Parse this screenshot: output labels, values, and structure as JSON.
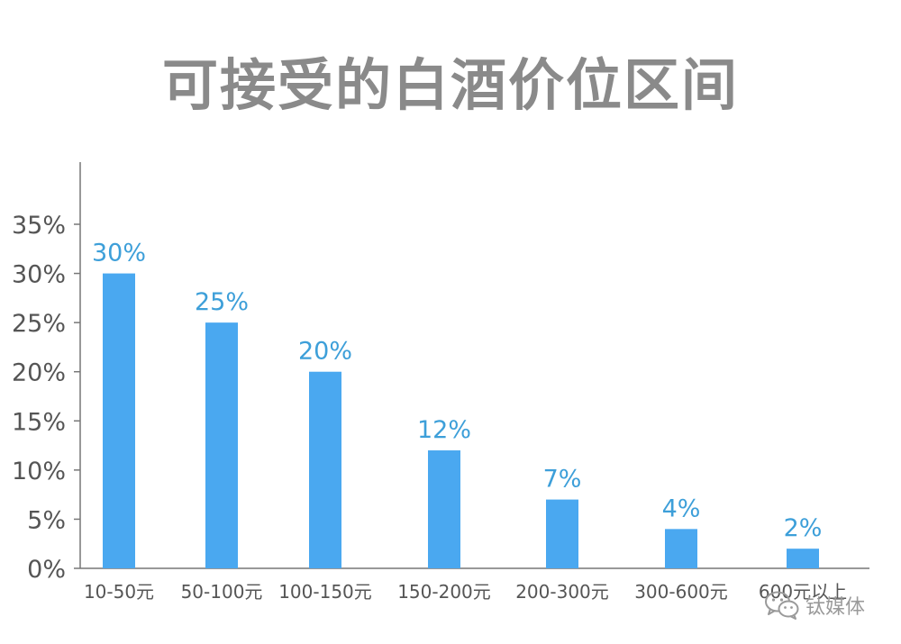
{
  "chart_data": {
    "type": "bar",
    "title": "可接受的白酒价位区间",
    "categories": [
      "10-50元",
      "50-100元",
      "100-150元",
      "150-200元",
      "200-300元",
      "300-600元",
      "600元以上"
    ],
    "values": [
      30,
      25,
      20,
      12,
      7,
      4,
      2
    ],
    "value_labels": [
      "30%",
      "25%",
      "20%",
      "12%",
      "7%",
      "4%",
      "2%"
    ],
    "ylim": [
      0,
      35
    ],
    "y_ticks": [
      "0%",
      "5%",
      "10%",
      "15%",
      "20%",
      "25%",
      "30%",
      "35%"
    ],
    "xlabel": "",
    "ylabel": "",
    "grid": false,
    "legend": "none",
    "bar_color": "#4aa8f0",
    "value_label_color": "#3d9fd9",
    "tick_label_color": "#555555",
    "axis_color": "#777777"
  },
  "watermark": {
    "text": "钛媒体",
    "icon": "wechat-icon"
  }
}
